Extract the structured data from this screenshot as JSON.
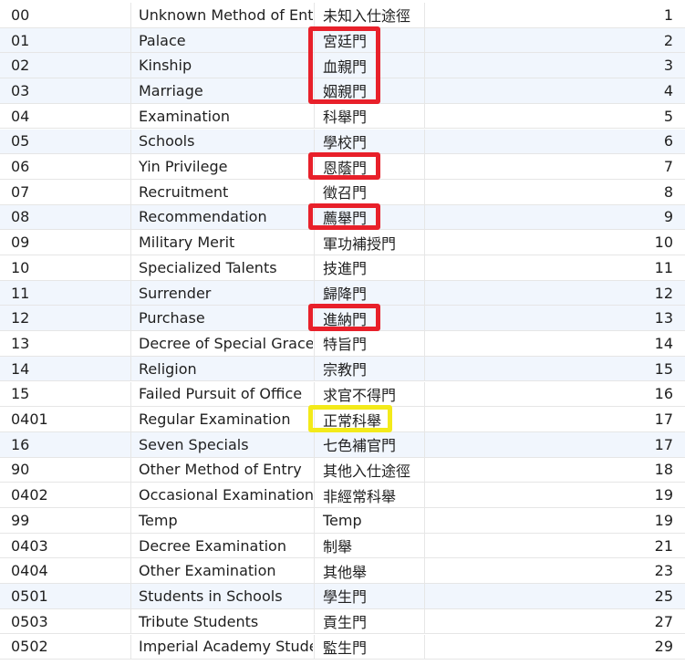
{
  "table": {
    "rows": [
      {
        "code": "00",
        "en": "Unknown Method of Ent",
        "zh": "未知入仕途徑",
        "num": "1"
      },
      {
        "code": "01",
        "en": "Palace",
        "zh": "宮廷門",
        "num": "2"
      },
      {
        "code": "02",
        "en": "Kinship",
        "zh": "血親門",
        "num": "3"
      },
      {
        "code": "03",
        "en": "Marriage",
        "zh": "姻親門",
        "num": "4"
      },
      {
        "code": "04",
        "en": "Examination",
        "zh": "科舉門",
        "num": "5"
      },
      {
        "code": "05",
        "en": "Schools",
        "zh": "學校門",
        "num": "6"
      },
      {
        "code": "06",
        "en": "Yin Privilege",
        "zh": "恩蔭門",
        "num": "7"
      },
      {
        "code": "07",
        "en": "Recruitment",
        "zh": "徵召門",
        "num": "8"
      },
      {
        "code": "08",
        "en": "Recommendation",
        "zh": "薦舉門",
        "num": "9"
      },
      {
        "code": "09",
        "en": "Military Merit",
        "zh": "軍功補授門",
        "num": "10"
      },
      {
        "code": "10",
        "en": "Specialized Talents",
        "zh": "技進門",
        "num": "11"
      },
      {
        "code": "11",
        "en": "Surrender",
        "zh": "歸降門",
        "num": "12"
      },
      {
        "code": "12",
        "en": "Purchase",
        "zh": "進納門",
        "num": "13"
      },
      {
        "code": "13",
        "en": "Decree of Special Grace",
        "zh": "特旨門",
        "num": "14"
      },
      {
        "code": "14",
        "en": "Religion",
        "zh": "宗教門",
        "num": "15"
      },
      {
        "code": "15",
        "en": "Failed Pursuit of Office",
        "zh": "求官不得門",
        "num": "16"
      },
      {
        "code": "0401",
        "en": "Regular Examination",
        "zh": "正常科舉",
        "num": "17"
      },
      {
        "code": "16",
        "en": "Seven Specials",
        "zh": "七色補官門",
        "num": "17"
      },
      {
        "code": "90",
        "en": "Other Method of Entry",
        "zh": "其他入仕途徑",
        "num": "18"
      },
      {
        "code": "0402",
        "en": "Occasional Examination",
        "zh": "非經常科舉",
        "num": "19"
      },
      {
        "code": "99",
        "en": "Temp",
        "zh": "Temp",
        "num": "19"
      },
      {
        "code": "0403",
        "en": "Decree Examination",
        "zh": "制舉",
        "num": "21"
      },
      {
        "code": "0404",
        "en": "Other Examination",
        "zh": "其他舉",
        "num": "23"
      },
      {
        "code": "0501",
        "en": "Students in Schools",
        "zh": "學生門",
        "num": "25"
      },
      {
        "code": "0503",
        "en": "Tribute Students",
        "zh": "貢生門",
        "num": "27"
      },
      {
        "code": "0502",
        "en": "Imperial Academy Stude",
        "zh": "監生門",
        "num": "29"
      }
    ],
    "alt_rows": [
      1,
      2,
      3,
      5,
      8,
      11,
      12,
      14,
      17,
      23
    ],
    "highlights": [
      {
        "color": "red",
        "rows": [
          1,
          3
        ]
      },
      {
        "color": "red",
        "rows": [
          6,
          6
        ]
      },
      {
        "color": "red",
        "rows": [
          8,
          8
        ]
      },
      {
        "color": "red",
        "rows": [
          12,
          12
        ]
      },
      {
        "color": "yellow",
        "rows": [
          16,
          16
        ]
      }
    ],
    "colors": {
      "red_highlight": "#e8202a",
      "yellow_highlight": "#f3ea1a",
      "alt_row_bg": "#f1f6fd"
    }
  }
}
